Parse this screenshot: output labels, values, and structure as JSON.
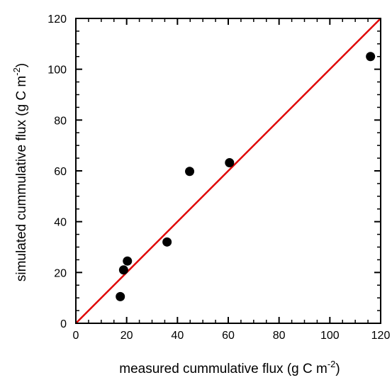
{
  "chart_data": {
    "type": "scatter",
    "xlabel": "measured cummulative flux (g C m",
    "xlabel_sup": "-2",
    "xlabel_end": ")",
    "ylabel": "simulated cummulative flux (g C m",
    "ylabel_sup": "-2",
    "ylabel_end": ")",
    "xlim": [
      0,
      120
    ],
    "ylim": [
      0,
      120
    ],
    "xticks": [
      0,
      20,
      40,
      60,
      80,
      100,
      120
    ],
    "yticks": [
      0,
      20,
      40,
      60,
      80,
      100,
      120
    ],
    "xtick_labels": [
      "0",
      "20",
      "40",
      "60",
      "80",
      "100",
      "120"
    ],
    "ytick_labels": [
      "0",
      "20",
      "40",
      "60",
      "80",
      "100",
      "120"
    ],
    "grid": false,
    "points": [
      {
        "x": 17.5,
        "y": 10.5
      },
      {
        "x": 18.8,
        "y": 21.0
      },
      {
        "x": 20.3,
        "y": 24.5
      },
      {
        "x": 35.9,
        "y": 32.0
      },
      {
        "x": 44.8,
        "y": 59.8
      },
      {
        "x": 60.5,
        "y": 63.2
      },
      {
        "x": 116.0,
        "y": 105.0
      }
    ],
    "reference_line": {
      "type": "1:1",
      "from": [
        0,
        0
      ],
      "to": [
        120,
        120
      ]
    },
    "colors": {
      "points": "#000000",
      "reference_line": "#e00000",
      "axes": "#000000"
    }
  }
}
